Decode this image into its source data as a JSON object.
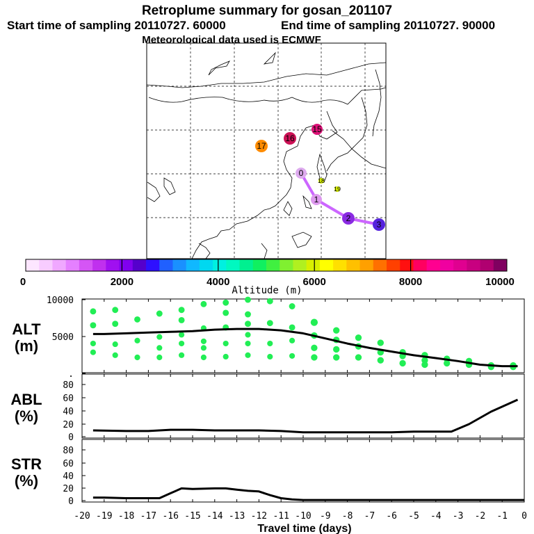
{
  "header": {
    "title": "Retroplume summary for gosan_201107",
    "start_label": "Start time of sampling 20110727. 60000",
    "end_label": "End time of sampling 20110727. 90000",
    "met_label": "Meteorological data used is ECMWF"
  },
  "map": {
    "trajectory_color": "#cc66ff",
    "points": [
      {
        "label": "0",
        "alt_color": "#ddaaee"
      },
      {
        "label": "1",
        "alt_color": "#dd99ee"
      },
      {
        "label": "2",
        "alt_color": "#8a2be2"
      },
      {
        "label": "3",
        "alt_color": "#5522dd"
      },
      {
        "label": "15",
        "alt_color": "#dd1177"
      },
      {
        "label": "16",
        "alt_color": "#cc1155"
      },
      {
        "label": "17",
        "alt_color": "#ff8c00"
      },
      {
        "label": "18",
        "alt_color": "#d8f000"
      },
      {
        "label": "19",
        "alt_color": "#d8f000"
      }
    ]
  },
  "colorbar": {
    "ticks": [
      "0",
      "2000",
      "4000",
      "6000",
      "8000",
      "10000"
    ],
    "label": "Altitude (m)",
    "colors": [
      "#fde6ff",
      "#f8ccff",
      "#f0a8ff",
      "#e580ff",
      "#d555f5",
      "#c030ee",
      "#a010f0",
      "#8000ee",
      "#5500cc",
      "#2e10ff",
      "#2060ff",
      "#1a90ff",
      "#10b8ff",
      "#00d8f0",
      "#00f0e0",
      "#00f8c0",
      "#00f090",
      "#10f060",
      "#40f040",
      "#80f030",
      "#b0f020",
      "#d8f000",
      "#ffff00",
      "#ffe000",
      "#ffc000",
      "#ffa000",
      "#ff7000",
      "#ff4000",
      "#ff1010",
      "#ff0060",
      "#ff0090",
      "#f000a0",
      "#e00090",
      "#c80080",
      "#b00070",
      "#800060"
    ]
  },
  "chart_data": [
    {
      "type": "line",
      "name": "ALT",
      "ylabel_line1": "ALT",
      "ylabel_line2": "(m)",
      "ylim": [
        0,
        10000
      ],
      "yticks": [
        "10000",
        "5000",
        "."
      ],
      "x": [
        -19.5,
        -19,
        -18,
        -17,
        -16,
        -15,
        -14,
        -13,
        -12,
        -11,
        -10,
        -9,
        -8,
        -7,
        -6,
        -5,
        -4,
        -3,
        -2,
        -1,
        -0.3
      ],
      "values": [
        5200,
        5200,
        5300,
        5400,
        5500,
        5600,
        5800,
        5900,
        5900,
        5700,
        5300,
        4600,
        3900,
        3300,
        2800,
        2300,
        1900,
        1500,
        1000,
        800,
        800
      ],
      "scatter": {
        "color": "#22ee55",
        "points": [
          [
            -19.5,
            8300
          ],
          [
            -19.5,
            6400
          ],
          [
            -19.5,
            3900
          ],
          [
            -19.5,
            2700
          ],
          [
            -18.5,
            8500
          ],
          [
            -18.5,
            6600
          ],
          [
            -18.5,
            3800
          ],
          [
            -18.5,
            2300
          ],
          [
            -17.5,
            7200
          ],
          [
            -17.5,
            4300
          ],
          [
            -17.5,
            2000
          ],
          [
            -16.5,
            8000
          ],
          [
            -16.5,
            4800
          ],
          [
            -16.5,
            3300
          ],
          [
            -16.5,
            2000
          ],
          [
            -15.5,
            8500
          ],
          [
            -15.5,
            7100
          ],
          [
            -15.5,
            5100
          ],
          [
            -15.5,
            3900
          ],
          [
            -15.5,
            2300
          ],
          [
            -14.5,
            9300
          ],
          [
            -14.5,
            6000
          ],
          [
            -14.5,
            4200
          ],
          [
            -14.5,
            3300
          ],
          [
            -14.5,
            2000
          ],
          [
            -13.5,
            9500
          ],
          [
            -13.5,
            8100
          ],
          [
            -13.5,
            6100
          ],
          [
            -13.5,
            3900
          ],
          [
            -13.5,
            2100
          ],
          [
            -12.5,
            9900
          ],
          [
            -12.5,
            7900
          ],
          [
            -12.5,
            6600
          ],
          [
            -12.5,
            5100
          ],
          [
            -12.5,
            3900
          ],
          [
            -12.5,
            2300
          ],
          [
            -11.5,
            9700
          ],
          [
            -11.5,
            6700
          ],
          [
            -11.5,
            3900
          ],
          [
            -11.5,
            2100
          ],
          [
            -10.5,
            9000
          ],
          [
            -10.5,
            6100
          ],
          [
            -10.5,
            4300
          ],
          [
            -10.5,
            2200
          ],
          [
            -9.5,
            6800
          ],
          [
            -9.5,
            5000
          ],
          [
            -9.5,
            3300
          ],
          [
            -9.5,
            2000
          ],
          [
            -8.5,
            5700
          ],
          [
            -8.5,
            4400
          ],
          [
            -8.5,
            3100
          ],
          [
            -8.5,
            2000
          ],
          [
            -7.5,
            4700
          ],
          [
            -7.5,
            3500
          ],
          [
            -7.5,
            2000
          ],
          [
            -6.5,
            4000
          ],
          [
            -6.5,
            2700
          ],
          [
            -6.5,
            1600
          ],
          [
            -5.5,
            2700
          ],
          [
            -5.5,
            2200
          ],
          [
            -5.5,
            1200
          ],
          [
            -4.5,
            2300
          ],
          [
            -4.5,
            1600
          ],
          [
            -4.5,
            1000
          ],
          [
            -3.5,
            1800
          ],
          [
            -3.5,
            1200
          ],
          [
            -2.5,
            1500
          ],
          [
            -2.5,
            1000
          ],
          [
            -1.5,
            900
          ],
          [
            -1.5,
            700
          ],
          [
            -0.5,
            900
          ],
          [
            -0.5,
            700
          ]
        ]
      }
    },
    {
      "type": "line",
      "name": "ABL",
      "ylabel_line1": "ABL",
      "ylabel_line2": "(%)",
      "ylim": [
        0,
        100
      ],
      "yticks": [
        "80",
        "60",
        "40",
        "20",
        "0"
      ],
      "x": [
        -19.5,
        -18,
        -17,
        -16,
        -15,
        -14,
        -13,
        -12,
        -11,
        -10,
        -9,
        -8,
        -7,
        -6,
        -5,
        -4,
        -3.3,
        -2.5,
        -1.5,
        -0.3
      ],
      "values": [
        10,
        9,
        9,
        11,
        11,
        10,
        10,
        10,
        9,
        7,
        7,
        7,
        7,
        7,
        8,
        8,
        8,
        20,
        40,
        59
      ]
    },
    {
      "type": "line",
      "name": "STR",
      "ylabel_line1": "STR",
      "ylabel_line2": "(%)",
      "ylim": [
        0,
        100
      ],
      "yticks": [
        "80",
        "60",
        "40",
        "20",
        "0"
      ],
      "xlabel": "Travel time (days)",
      "xticks": [
        "-20",
        "-19",
        "-18",
        "-17",
        "-16",
        "-15",
        "-14",
        "-13",
        "-12",
        "-11",
        "-10",
        "-9",
        "-8",
        "-7",
        "-6",
        "-5",
        "-4",
        "-3",
        "-2",
        "-1",
        "0"
      ],
      "x": [
        -19.5,
        -19,
        -18,
        -17,
        -16.5,
        -16,
        -15.5,
        -15,
        -14,
        -13.5,
        -13,
        -12.5,
        -12,
        -11.5,
        -11,
        -10.5,
        -10,
        -5,
        0
      ],
      "values": [
        5,
        5,
        4,
        4,
        4,
        12,
        20,
        19,
        20,
        20,
        18,
        16,
        15,
        9,
        4,
        2,
        1,
        1,
        1
      ]
    }
  ]
}
